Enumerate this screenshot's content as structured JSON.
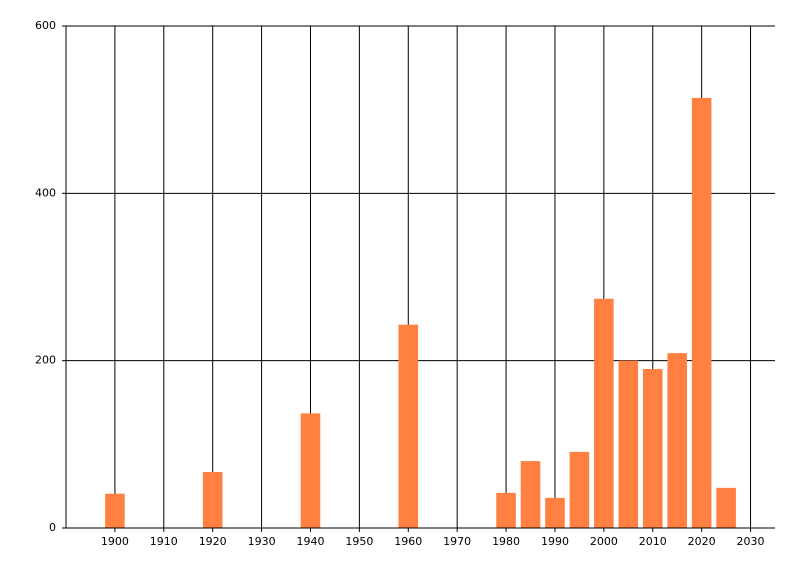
{
  "chart_data": {
    "type": "bar",
    "x": [
      1900,
      1920,
      1940,
      1960,
      1980,
      1985,
      1990,
      1995,
      2000,
      2005,
      2010,
      2015,
      2020,
      2025
    ],
    "values": [
      41,
      67,
      137,
      243,
      42,
      80,
      36,
      91,
      274,
      200,
      190,
      209,
      514,
      48
    ],
    "color": "#ff8040",
    "xlim": [
      1890,
      2035
    ],
    "xticks": [
      1900,
      1910,
      1920,
      1930,
      1940,
      1950,
      1960,
      1970,
      1980,
      1990,
      2000,
      2010,
      2020,
      2030
    ],
    "ylim": [
      0,
      600
    ],
    "yticks": [
      0,
      200,
      400,
      600
    ],
    "grid": true
  }
}
